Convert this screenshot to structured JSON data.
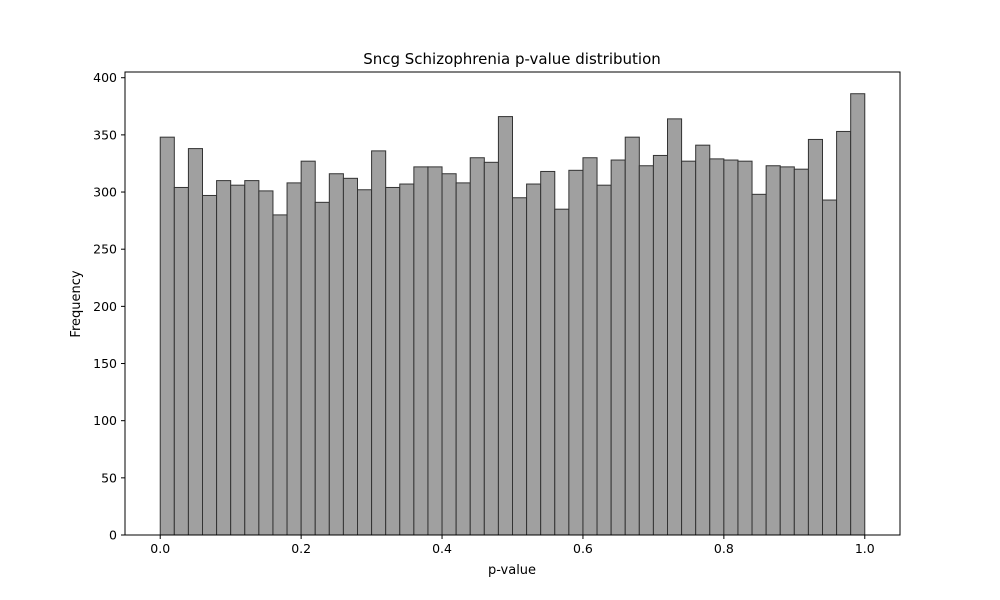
{
  "chart_data": {
    "type": "bar",
    "title": "Sncg Schizophrenia p-value distribution",
    "xlabel": "p-value",
    "ylabel": "Frequency",
    "xlim": [
      -0.05,
      1.05
    ],
    "ylim": [
      0,
      405
    ],
    "x_ticks": [
      0.0,
      0.2,
      0.4,
      0.6,
      0.8,
      1.0
    ],
    "x_tick_labels": [
      "0.0",
      "0.2",
      "0.4",
      "0.6",
      "0.8",
      "1.0"
    ],
    "y_ticks": [
      0,
      50,
      100,
      150,
      200,
      250,
      300,
      350,
      400
    ],
    "y_tick_labels": [
      "0",
      "50",
      "100",
      "150",
      "200",
      "250",
      "300",
      "350",
      "400"
    ],
    "bin_range": [
      0.0,
      1.0
    ],
    "bin_count": 50,
    "values": [
      348,
      304,
      338,
      297,
      310,
      306,
      310,
      301,
      280,
      308,
      327,
      291,
      316,
      312,
      302,
      336,
      304,
      307,
      322,
      322,
      316,
      308,
      330,
      326,
      366,
      295,
      307,
      318,
      285,
      319,
      330,
      306,
      328,
      348,
      323,
      332,
      364,
      327,
      341,
      329,
      328,
      327,
      298,
      323,
      322,
      320,
      346,
      293,
      353,
      386
    ],
    "bar_color": "#a0a0a0",
    "edge_color": "#333333",
    "grid": false,
    "legend": "none"
  }
}
